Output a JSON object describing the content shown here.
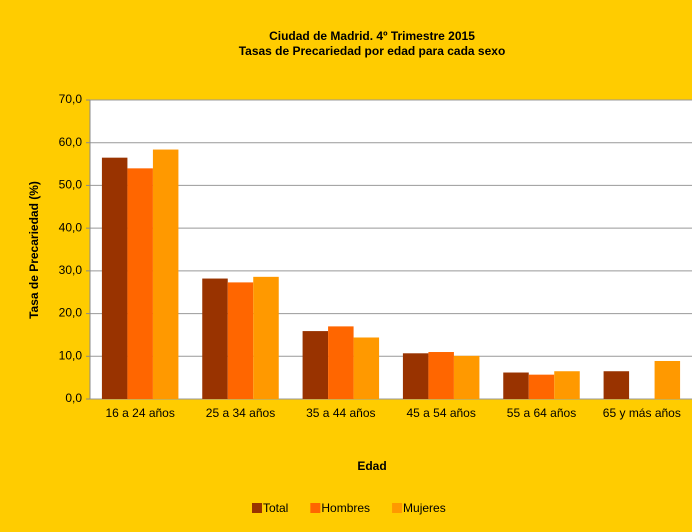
{
  "chart_data": {
    "type": "bar",
    "title": "Ciudad de Madrid. 4º Trimestre 2015",
    "subtitle": "Tasas de Precariedad por edad para cada sexo",
    "x_label": "Edad",
    "y_label": "Tasa de Precariedad (%)",
    "categories": [
      "16 a 24 años",
      "25 a 34 años",
      "35 a 44 años",
      "45 a 54 años",
      "55 a 64 años",
      "65 y más años"
    ],
    "series": [
      {
        "name": "Total",
        "color": "#993300",
        "values": [
          56.5,
          28.2,
          15.9,
          10.7,
          6.2,
          6.5
        ]
      },
      {
        "name": "Hombres",
        "color": "#FF6600",
        "values": [
          54.0,
          27.3,
          17.0,
          11.0,
          5.7,
          null
        ]
      },
      {
        "name": "Mujeres",
        "color": "#FF9900",
        "values": [
          58.4,
          28.6,
          14.4,
          10.1,
          6.5,
          8.9
        ]
      }
    ],
    "ylim": [
      0,
      70
    ],
    "yticks": [
      {
        "value": 0,
        "label": "0,0"
      },
      {
        "value": 10,
        "label": "10,0"
      },
      {
        "value": 20,
        "label": "20,0"
      },
      {
        "value": 30,
        "label": "30,0"
      },
      {
        "value": 40,
        "label": "40,0"
      },
      {
        "value": 50,
        "label": "50,0"
      },
      {
        "value": 60,
        "label": "60,0"
      },
      {
        "value": 70,
        "label": "70,0"
      }
    ],
    "grid": true,
    "legend": "bottom"
  }
}
